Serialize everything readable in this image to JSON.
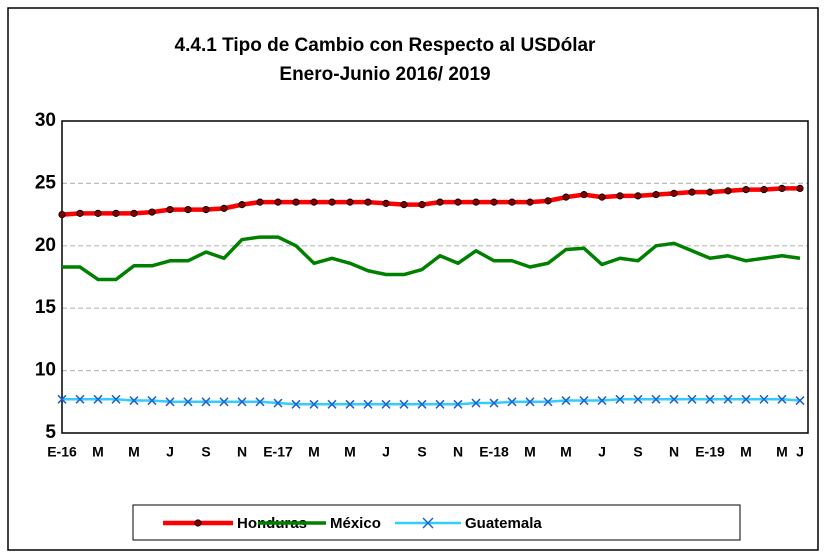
{
  "chart_data": {
    "type": "line",
    "title": "4.4.1 Tipo de Cambio con Respecto al USDólar",
    "subtitle": "Enero-Junio 2016/ 2019",
    "categories": [
      "E-16",
      null,
      "M",
      null,
      "M",
      null,
      "J",
      null,
      "S",
      null,
      "N",
      null,
      "E-17",
      null,
      "M",
      null,
      "M",
      null,
      "J",
      null,
      "S",
      null,
      "N",
      null,
      "E-18",
      null,
      "M",
      null,
      "M",
      null,
      "J",
      null,
      "S",
      null,
      "N",
      null,
      "E-19",
      null,
      "M",
      null,
      "M",
      "J"
    ],
    "series": [
      {
        "name": "Honduras",
        "color": "#ff0000",
        "marker": "circle",
        "values": [
          22.5,
          22.6,
          22.6,
          22.6,
          22.6,
          22.7,
          22.9,
          22.9,
          22.9,
          23.0,
          23.3,
          23.5,
          23.5,
          23.5,
          23.5,
          23.5,
          23.5,
          23.5,
          23.4,
          23.3,
          23.3,
          23.5,
          23.5,
          23.5,
          23.5,
          23.5,
          23.5,
          23.6,
          23.9,
          24.1,
          23.9,
          24.0,
          24.0,
          24.1,
          24.2,
          24.3,
          24.3,
          24.4,
          24.5,
          24.5,
          24.6,
          24.6
        ]
      },
      {
        "name": "México",
        "color": "#008000",
        "marker": "none",
        "values": [
          18.3,
          18.3,
          17.3,
          17.3,
          18.4,
          18.4,
          18.8,
          18.8,
          19.5,
          19.0,
          20.5,
          20.7,
          20.7,
          20.0,
          18.6,
          19.0,
          18.6,
          18.0,
          17.7,
          17.7,
          18.1,
          19.2,
          18.6,
          19.6,
          18.8,
          18.8,
          18.3,
          18.6,
          19.7,
          19.8,
          18.5,
          19.0,
          18.8,
          20.0,
          20.2,
          19.6,
          19.0,
          19.2,
          18.8,
          19.0,
          19.2,
          19.0
        ]
      },
      {
        "name": "Guatemala",
        "color": "#33ccff",
        "marker": "x",
        "values": [
          7.7,
          7.7,
          7.7,
          7.7,
          7.6,
          7.6,
          7.5,
          7.5,
          7.5,
          7.5,
          7.5,
          7.5,
          7.4,
          7.3,
          7.3,
          7.3,
          7.3,
          7.3,
          7.3,
          7.3,
          7.3,
          7.3,
          7.3,
          7.4,
          7.4,
          7.5,
          7.5,
          7.5,
          7.6,
          7.6,
          7.6,
          7.7,
          7.7,
          7.7,
          7.7,
          7.7,
          7.7,
          7.7,
          7.7,
          7.7,
          7.7,
          7.6
        ]
      }
    ],
    "ylim": [
      5,
      30
    ],
    "yticks": [
      5,
      10,
      15,
      20,
      25,
      30
    ],
    "grid": true,
    "legend": "bottom"
  }
}
